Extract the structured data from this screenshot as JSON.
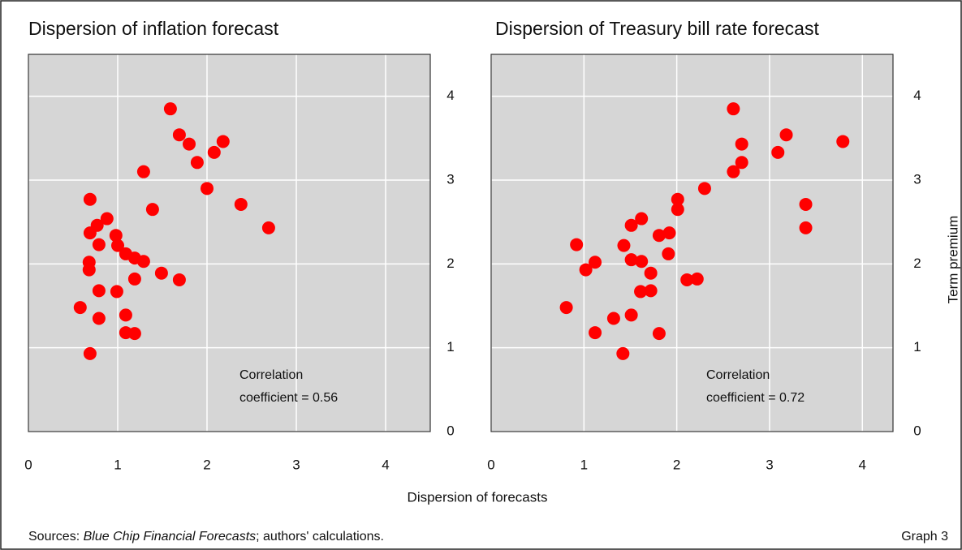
{
  "chart_data": [
    {
      "type": "scatter",
      "title": "Dispersion of inflation forecast",
      "annotation": [
        "Correlation",
        "coefficient = 0.56"
      ],
      "color": "#ff0000",
      "grid": true,
      "xlim": [
        0,
        4.5
      ],
      "xticks": [
        0,
        1,
        2,
        3,
        4
      ],
      "ylim": [
        0,
        4.5
      ],
      "yticks": [
        0,
        1,
        2,
        3,
        4
      ],
      "x": [
        1.59,
        1.69,
        1.8,
        2.18,
        2.08,
        1.89,
        1.29,
        2.0,
        2.38,
        2.69,
        1.39,
        0.69,
        0.88,
        0.77,
        0.69,
        0.98,
        0.79,
        1.0,
        1.09,
        1.19,
        1.29,
        0.68,
        0.68,
        1.49,
        1.19,
        1.69,
        0.79,
        0.99,
        0.58,
        1.09,
        0.79,
        1.09,
        1.19,
        0.69
      ],
      "values": [
        3.85,
        3.54,
        3.43,
        3.46,
        3.33,
        3.21,
        3.1,
        2.9,
        2.71,
        2.43,
        2.65,
        2.77,
        2.54,
        2.46,
        2.37,
        2.34,
        2.23,
        2.22,
        2.12,
        2.07,
        2.03,
        2.02,
        1.93,
        1.89,
        1.82,
        1.81,
        1.68,
        1.67,
        1.48,
        1.39,
        1.35,
        1.18,
        1.17,
        0.93
      ]
    },
    {
      "type": "scatter",
      "title": "Dispersion of Treasury bill rate forecast",
      "annotation": [
        "Correlation",
        "coefficient = 0.72"
      ],
      "color": "#ff0000",
      "grid": true,
      "xlim": [
        0,
        4.33
      ],
      "xticks": [
        0,
        1,
        2,
        3,
        4
      ],
      "ylim": [
        0,
        4.5
      ],
      "yticks": [
        0,
        1,
        2,
        3,
        4
      ],
      "x": [
        2.61,
        3.18,
        2.7,
        3.79,
        3.09,
        2.7,
        2.61,
        2.3,
        2.01,
        2.01,
        3.39,
        3.39,
        1.62,
        1.51,
        1.92,
        1.81,
        0.92,
        1.43,
        1.91,
        1.51,
        1.62,
        1.12,
        1.02,
        1.72,
        2.11,
        2.22,
        1.61,
        1.72,
        0.81,
        1.32,
        1.51,
        1.12,
        1.81,
        1.42
      ],
      "values": [
        3.85,
        3.54,
        3.43,
        3.46,
        3.33,
        3.21,
        3.1,
        2.9,
        2.77,
        2.65,
        2.71,
        2.43,
        2.54,
        2.46,
        2.37,
        2.34,
        2.23,
        2.22,
        2.12,
        2.05,
        2.03,
        2.02,
        1.93,
        1.89,
        1.81,
        1.82,
        1.67,
        1.68,
        1.48,
        1.35,
        1.39,
        1.18,
        1.17,
        0.93
      ]
    }
  ],
  "xlabel": "Dispersion of forecasts",
  "ylabel": "Term premium",
  "source": [
    "Sources: ",
    "Blue Chip Financial Forecasts",
    "; authors' calculations."
  ],
  "graph_label": "Graph 3"
}
